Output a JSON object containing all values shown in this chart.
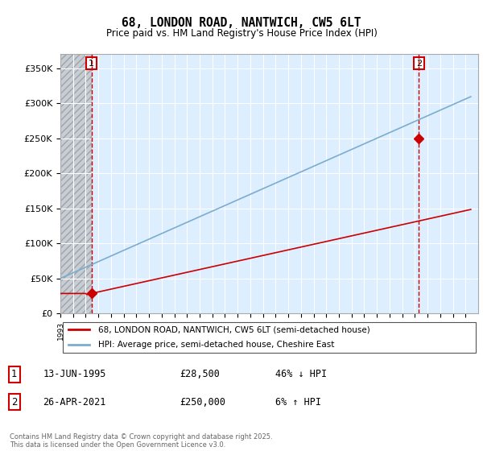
{
  "title": "68, LONDON ROAD, NANTWICH, CW5 6LT",
  "subtitle": "Price paid vs. HM Land Registry's House Price Index (HPI)",
  "legend_line1": "68, LONDON ROAD, NANTWICH, CW5 6LT (semi-detached house)",
  "legend_line2": "HPI: Average price, semi-detached house, Cheshire East",
  "ylim": [
    0,
    370000
  ],
  "yticks": [
    0,
    50000,
    100000,
    150000,
    200000,
    250000,
    300000,
    350000
  ],
  "ytick_labels": [
    "£0",
    "£50K",
    "£100K",
    "£150K",
    "£200K",
    "£250K",
    "£300K",
    "£350K"
  ],
  "sale1_year": 1995.45,
  "sale1_price": 28500,
  "sale2_year": 2021.32,
  "sale2_price": 250000,
  "red_color": "#cc0000",
  "blue_color": "#7aadcf",
  "chart_bg": "#ddeeff",
  "hatch_bg": "#c8c8c8",
  "vline_color": "#cc0000",
  "footer": "Contains HM Land Registry data © Crown copyright and database right 2025.\nThis data is licensed under the Open Government Licence v3.0.",
  "xmin": 1993.0,
  "xmax": 2026.0
}
